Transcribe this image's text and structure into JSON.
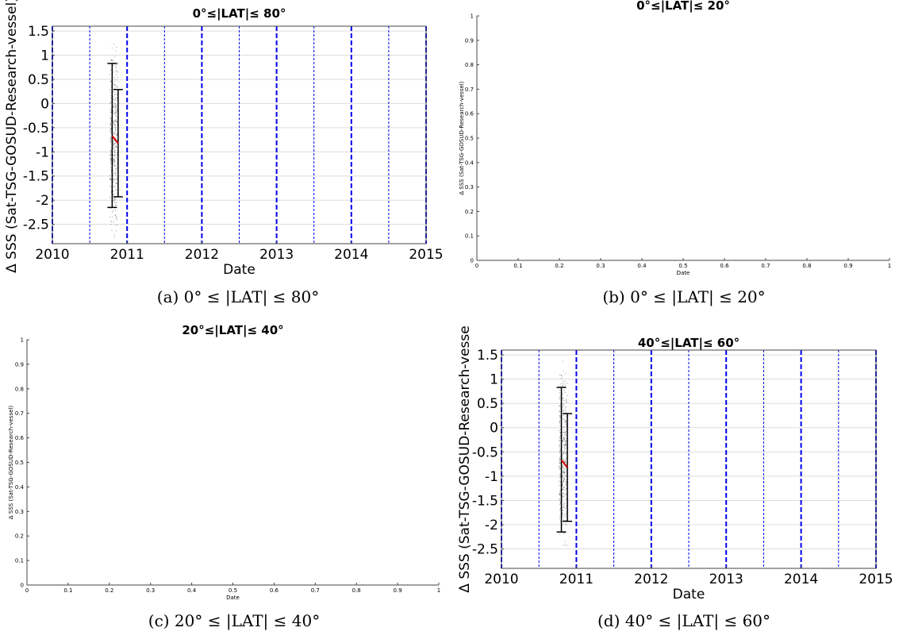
{
  "figure": {
    "captions": [
      "(a) 0° ≤ |LAT| ≤ 80°",
      "(b) 0° ≤ |LAT| ≤ 20°",
      "(c) 20° ≤ |LAT| ≤ 40°",
      "(d) 40° ≤ |LAT| ≤ 60°"
    ]
  },
  "chart_data": [
    {
      "type": "scatter",
      "title": "0°≤|LAT|≤ 80°",
      "xlabel": "Date",
      "ylabel": "Δ SSS (Sat-TSG-GOSUD-Research-vessel)",
      "xlim": [
        2010,
        2015
      ],
      "ylim": [
        -2.9,
        1.6
      ],
      "x_ticks": [
        2010,
        2011,
        2012,
        2013,
        2014,
        2015
      ],
      "y_ticks": [
        -2.5,
        -2,
        -1.5,
        -1,
        -0.5,
        0,
        0.5,
        1,
        1.5
      ],
      "y_tick_labels": [
        "-2.5",
        "-2",
        "-1.5",
        "-1",
        "-0.5",
        "0",
        "0.5",
        "1",
        "1.5"
      ],
      "grid": "horizontal",
      "vlines_major": [
        2010,
        2011,
        2012,
        2013,
        2014,
        2015
      ],
      "vlines_minor": [
        2010.5,
        2011.5,
        2012.5,
        2013.5,
        2014.5
      ],
      "points_x_range": [
        2010.77,
        2010.88
      ],
      "points_y_range": [
        -2.8,
        1.45
      ],
      "errorbars": [
        {
          "x": 2010.8,
          "low": -2.15,
          "high": 0.83
        },
        {
          "x": 2010.88,
          "low": -1.93,
          "high": 0.29
        }
      ],
      "mean_line": {
        "x": [
          2010.8,
          2010.88
        ],
        "y": [
          -0.67,
          -0.82
        ]
      },
      "colors": {
        "points": "#555555",
        "errorbar": "#000000",
        "mean": "#dd0000",
        "vlines": "#0000ee",
        "grid": "#dcdcdc"
      }
    },
    {
      "type": "scatter",
      "title": "0°≤|LAT|≤ 20°",
      "xlabel": "Date",
      "ylabel": "Δ SSS (Sat-TSG-GOSUD-Research-vessel)",
      "xlim": [
        0,
        1
      ],
      "ylim": [
        0,
        1
      ],
      "x_ticks": [
        0,
        0.1,
        0.2,
        0.3,
        0.4,
        0.5,
        0.6,
        0.7,
        0.8,
        0.9,
        1
      ],
      "y_ticks": [
        0,
        0.1,
        0.2,
        0.3,
        0.4,
        0.5,
        0.6,
        0.7,
        0.8,
        0.9,
        1
      ],
      "series": []
    },
    {
      "type": "scatter",
      "title": "20°≤|LAT|≤ 40°",
      "xlabel": "Date",
      "ylabel": "Δ SSS (Sat-TSG-GOSUD-Research-vessel)",
      "xlim": [
        0,
        1
      ],
      "ylim": [
        0,
        1
      ],
      "x_ticks": [
        0,
        0.1,
        0.2,
        0.3,
        0.4,
        0.5,
        0.6,
        0.7,
        0.8,
        0.9,
        1
      ],
      "y_ticks": [
        0,
        0.1,
        0.2,
        0.3,
        0.4,
        0.5,
        0.6,
        0.7,
        0.8,
        0.9,
        1
      ],
      "series": []
    },
    {
      "type": "scatter",
      "title": "40°≤|LAT|≤ 60°",
      "xlabel": "Date",
      "ylabel": "Δ SSS (Sat-TSG-GOSUD-Research-vesse",
      "xlim": [
        2010,
        2015
      ],
      "ylim": [
        -2.9,
        1.6
      ],
      "x_ticks": [
        2010,
        2011,
        2012,
        2013,
        2014,
        2015
      ],
      "y_ticks": [
        -2.5,
        -2,
        -1.5,
        -1,
        -0.5,
        0,
        0.5,
        1,
        1.5
      ],
      "y_tick_labels": [
        "-2.5",
        "-2",
        "-1.5",
        "-1",
        "-0.5",
        "0",
        "0.5",
        "1",
        "1.5"
      ],
      "grid": "horizontal",
      "vlines_major": [
        2010,
        2011,
        2012,
        2013,
        2014,
        2015
      ],
      "vlines_minor": [
        2010.5,
        2011.5,
        2012.5,
        2013.5,
        2014.5
      ],
      "points_x_range": [
        2010.77,
        2010.88
      ],
      "points_y_range": [
        -2.8,
        1.45
      ],
      "errorbars": [
        {
          "x": 2010.8,
          "low": -2.15,
          "high": 0.83
        },
        {
          "x": 2010.88,
          "low": -1.93,
          "high": 0.29
        }
      ],
      "mean_line": {
        "x": [
          2010.8,
          2010.88
        ],
        "y": [
          -0.67,
          -0.82
        ]
      },
      "colors": {
        "points": "#555555",
        "errorbar": "#000000",
        "mean": "#dd0000",
        "vlines": "#0000ee",
        "grid": "#dcdcdc"
      }
    }
  ]
}
